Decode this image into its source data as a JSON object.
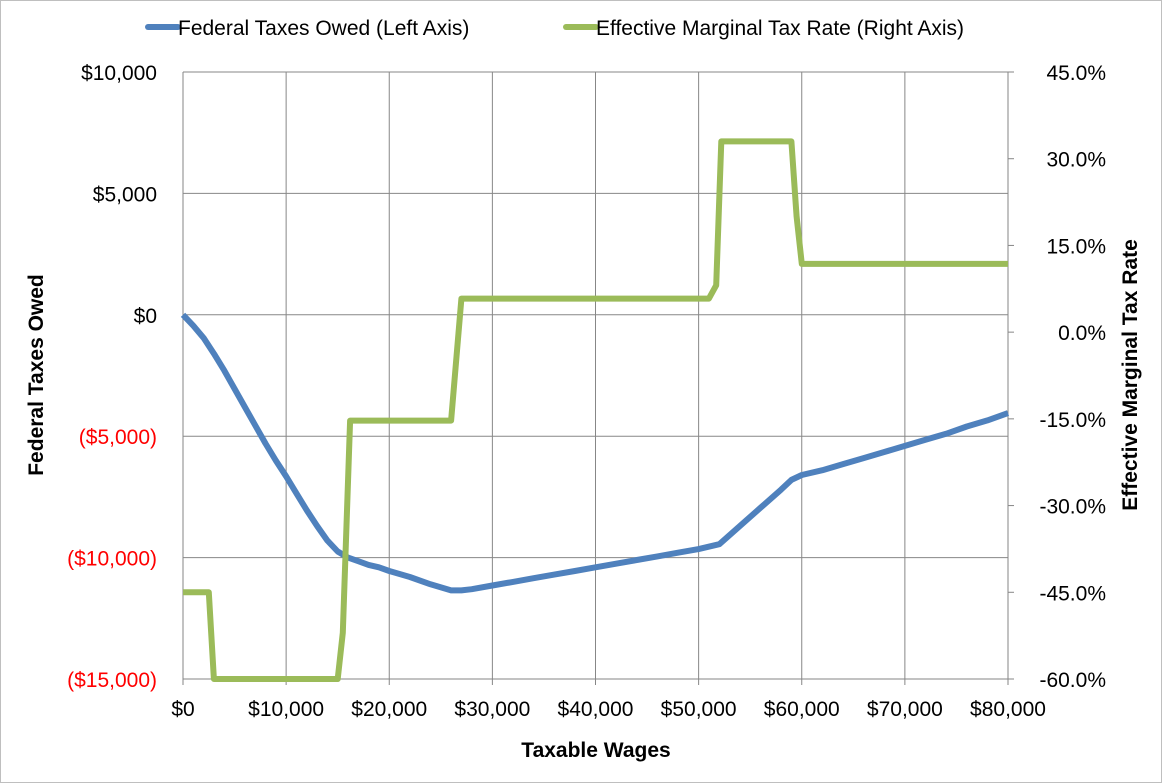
{
  "chart_data": {
    "type": "line",
    "title": "",
    "xlabel": "Taxable Wages",
    "ylabel_left": "Federal Taxes Owed",
    "ylabel_right": "Effective Marginal Tax Rate",
    "xlim": [
      0,
      80000
    ],
    "ylim_left": [
      -15000,
      10000
    ],
    "ylim_right": [
      -60,
      45
    ],
    "x_ticks": [
      {
        "value": 0,
        "label": "$0"
      },
      {
        "value": 10000,
        "label": "$10,000"
      },
      {
        "value": 20000,
        "label": "$20,000"
      },
      {
        "value": 30000,
        "label": "$30,000"
      },
      {
        "value": 40000,
        "label": "$40,000"
      },
      {
        "value": 50000,
        "label": "$50,000"
      },
      {
        "value": 60000,
        "label": "$60,000"
      },
      {
        "value": 70000,
        "label": "$70,000"
      },
      {
        "value": 80000,
        "label": "$80,000"
      }
    ],
    "y_left_ticks": [
      {
        "value": 10000,
        "label": "$10,000",
        "color": "#000000"
      },
      {
        "value": 5000,
        "label": "$5,000",
        "color": "#000000"
      },
      {
        "value": 0,
        "label": "$0",
        "color": "#000000"
      },
      {
        "value": -5000,
        "label": "($5,000)",
        "color": "#ff0000"
      },
      {
        "value": -10000,
        "label": "($10,000)",
        "color": "#ff0000"
      },
      {
        "value": -15000,
        "label": "($15,000)",
        "color": "#ff0000"
      }
    ],
    "y_right_ticks": [
      {
        "value": 45,
        "label": "45.0%"
      },
      {
        "value": 30,
        "label": "30.0%"
      },
      {
        "value": 15,
        "label": "15.0%"
      },
      {
        "value": 0,
        "label": "0.0%"
      },
      {
        "value": -15,
        "label": "-15.0%"
      },
      {
        "value": -30,
        "label": "-30.0%"
      },
      {
        "value": -45,
        "label": "-45.0%"
      },
      {
        "value": -60,
        "label": "-60.0%"
      }
    ],
    "grid": true,
    "legend_position": "top",
    "series": [
      {
        "name": "Federal Taxes Owed (Left Axis)",
        "axis": "left",
        "color": "#4f81bd",
        "x": [
          0,
          1000,
          2000,
          3000,
          4000,
          5000,
          6000,
          7000,
          8000,
          9000,
          10000,
          11000,
          12000,
          13000,
          14000,
          15000,
          16000,
          17000,
          18000,
          19000,
          20000,
          22000,
          24000,
          26000,
          27000,
          28000,
          30000,
          32000,
          34000,
          36000,
          38000,
          40000,
          42000,
          44000,
          46000,
          48000,
          50000,
          52000,
          54000,
          56000,
          58000,
          59000,
          60000,
          62000,
          64000,
          66000,
          68000,
          70000,
          72000,
          74000,
          76000,
          78000,
          80000
        ],
        "y": [
          0,
          -450,
          -950,
          -1600,
          -2300,
          -3050,
          -3800,
          -4550,
          -5300,
          -6000,
          -6650,
          -7350,
          -8050,
          -8700,
          -9300,
          -9750,
          -10000,
          -10150,
          -10300,
          -10400,
          -10550,
          -10800,
          -11100,
          -11350,
          -11350,
          -11300,
          -11150,
          -11000,
          -10850,
          -10700,
          -10550,
          -10400,
          -10250,
          -10100,
          -9950,
          -9800,
          -9650,
          -9450,
          -8700,
          -7950,
          -7200,
          -6800,
          -6600,
          -6400,
          -6150,
          -5900,
          -5650,
          -5400,
          -5150,
          -4900,
          -4600,
          -4350,
          -4050
        ]
      },
      {
        "name": "Effective Marginal Tax Rate (Right Axis)",
        "axis": "right",
        "color": "#9bbb59",
        "x": [
          0,
          2500,
          3000,
          15000,
          15500,
          16200,
          26000,
          27000,
          51000,
          51700,
          52200,
          59000,
          59500,
          60000,
          80000
        ],
        "y": [
          -45,
          -45,
          -60,
          -60,
          -52,
          -15.3,
          -15.3,
          5.8,
          5.8,
          8.1,
          33,
          33,
          20,
          11.8,
          11.8
        ]
      }
    ]
  }
}
